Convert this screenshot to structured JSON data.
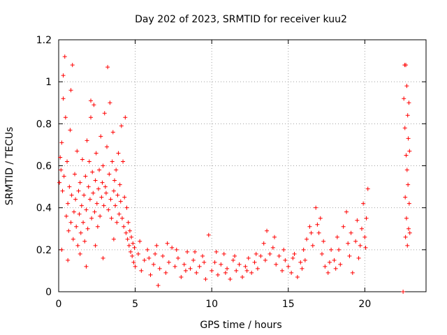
{
  "chart_data": {
    "type": "scatter",
    "title": "Day 202 of 2023, SRMTID for receiver kuu2",
    "xlabel": "GPS time / hours",
    "ylabel": "SRMTID / TECUs",
    "xlim": [
      0,
      24
    ],
    "ylim": [
      0,
      1.2
    ],
    "xticks": [
      0,
      5,
      10,
      15,
      20
    ],
    "yticks": [
      0,
      0.2,
      0.4,
      0.6,
      0.8,
      1,
      1.2
    ],
    "xtick_labels": [
      "0",
      "5",
      "10",
      "15",
      "20"
    ],
    "ytick_labels": [
      "0",
      "0.2",
      "0.4",
      "0.6",
      "0.8",
      "1",
      "1.2"
    ],
    "grid": true,
    "marker": "+",
    "color": "#ff0000",
    "series": [
      {
        "name": "SRMTID",
        "points": [
          [
            0.05,
            0.52
          ],
          [
            0.1,
            0.64
          ],
          [
            0.15,
            0.58
          ],
          [
            0.2,
            0.71
          ],
          [
            0.25,
            0.48
          ],
          [
            0.3,
            0.92
          ],
          [
            0.35,
            0.55
          ],
          [
            0.4,
            1.12
          ],
          [
            0.45,
            0.83
          ],
          [
            0.5,
            0.36
          ],
          [
            0.55,
            0.62
          ],
          [
            0.6,
            0.42
          ],
          [
            0.65,
            0.29
          ],
          [
            0.7,
            0.5
          ],
          [
            0.75,
            0.77
          ],
          [
            0.8,
            0.33
          ],
          [
            0.85,
            0.46
          ],
          [
            0.9,
            1.08
          ],
          [
            0.95,
            0.25
          ],
          [
            1.0,
            0.38
          ],
          [
            1.05,
            0.56
          ],
          [
            1.1,
            0.44
          ],
          [
            1.15,
            0.31
          ],
          [
            1.2,
            0.67
          ],
          [
            1.25,
            0.22
          ],
          [
            1.3,
            0.48
          ],
          [
            1.35,
            0.37
          ],
          [
            1.4,
            0.52
          ],
          [
            1.45,
            0.28
          ],
          [
            1.5,
            0.41
          ],
          [
            1.55,
            0.63
          ],
          [
            1.6,
            0.33
          ],
          [
            1.65,
            0.46
          ],
          [
            1.7,
            0.24
          ],
          [
            1.75,
            0.55
          ],
          [
            1.8,
            0.39
          ],
          [
            1.85,
            0.72
          ],
          [
            1.9,
            0.3
          ],
          [
            1.95,
            0.5
          ],
          [
            2.0,
            0.62
          ],
          [
            2.05,
            0.44
          ],
          [
            2.1,
            0.83
          ],
          [
            2.15,
            0.35
          ],
          [
            2.2,
            0.57
          ],
          [
            2.25,
            0.47
          ],
          [
            2.3,
            0.89
          ],
          [
            2.35,
            0.38
          ],
          [
            2.4,
            0.53
          ],
          [
            2.45,
            0.66
          ],
          [
            2.5,
            0.42
          ],
          [
            2.55,
            0.31
          ],
          [
            2.6,
            0.49
          ],
          [
            2.65,
            0.58
          ],
          [
            2.7,
            0.36
          ],
          [
            2.75,
            0.74
          ],
          [
            2.8,
            0.45
          ],
          [
            2.85,
            0.52
          ],
          [
            2.9,
            0.6
          ],
          [
            2.95,
            0.41
          ],
          [
            3.0,
            0.85
          ],
          [
            3.05,
            0.5
          ],
          [
            3.1,
            0.47
          ],
          [
            3.15,
            0.69
          ],
          [
            3.2,
            1.07
          ],
          [
            3.25,
            0.39
          ],
          [
            3.3,
            0.56
          ],
          [
            3.35,
            0.9
          ],
          [
            3.4,
            0.44
          ],
          [
            3.45,
            0.35
          ],
          [
            3.5,
            0.62
          ],
          [
            3.55,
            0.76
          ],
          [
            3.6,
            0.48
          ],
          [
            3.65,
            0.53
          ],
          [
            3.7,
            0.41
          ],
          [
            3.75,
            0.58
          ],
          [
            3.8,
            0.33
          ],
          [
            3.85,
            0.46
          ],
          [
            3.9,
            0.66
          ],
          [
            3.95,
            0.37
          ],
          [
            4.0,
            0.51
          ],
          [
            4.05,
            0.43
          ],
          [
            4.1,
            0.79
          ],
          [
            4.15,
            0.35
          ],
          [
            4.2,
            0.62
          ],
          [
            4.25,
            0.31
          ],
          [
            4.3,
            0.45
          ],
          [
            4.35,
            0.83
          ],
          [
            4.4,
            0.28
          ],
          [
            4.45,
            0.4
          ],
          [
            4.5,
            0.25
          ],
          [
            4.55,
            0.33
          ],
          [
            4.6,
            0.22
          ],
          [
            4.65,
            0.29
          ],
          [
            4.7,
            0.19
          ],
          [
            4.75,
            0.26
          ],
          [
            4.8,
            0.17
          ],
          [
            4.85,
            0.23
          ],
          [
            4.9,
            0.14
          ],
          [
            4.95,
            0.21
          ],
          [
            5.0,
            0.12
          ],
          [
            0.2,
            0.2
          ],
          [
            0.6,
            0.15
          ],
          [
            1.4,
            0.18
          ],
          [
            1.8,
            0.12
          ],
          [
            2.4,
            0.22
          ],
          [
            2.9,
            0.16
          ],
          [
            3.6,
            0.25
          ],
          [
            0.3,
            1.03
          ],
          [
            0.8,
            0.96
          ],
          [
            2.1,
            0.91
          ],
          [
            5.2,
            0.18
          ],
          [
            5.4,
            0.1
          ],
          [
            5.6,
            0.15
          ],
          [
            5.8,
            0.2
          ],
          [
            6.0,
            0.08
          ],
          [
            6.2,
            0.13
          ],
          [
            6.4,
            0.22
          ],
          [
            6.5,
            0.03
          ],
          [
            6.6,
            0.11
          ],
          [
            6.8,
            0.17
          ],
          [
            7.0,
            0.09
          ],
          [
            7.2,
            0.14
          ],
          [
            7.4,
            0.21
          ],
          [
            7.6,
            0.12
          ],
          [
            7.8,
            0.16
          ],
          [
            8.0,
            0.07
          ],
          [
            8.2,
            0.13
          ],
          [
            8.4,
            0.19
          ],
          [
            8.6,
            0.11
          ],
          [
            8.8,
            0.15
          ],
          [
            9.0,
            0.09
          ],
          [
            9.2,
            0.12
          ],
          [
            9.4,
            0.17
          ],
          [
            9.6,
            0.06
          ],
          [
            9.8,
            0.27
          ],
          [
            10.0,
            0.1
          ],
          [
            10.2,
            0.14
          ],
          [
            10.4,
            0.08
          ],
          [
            10.6,
            0.13
          ],
          [
            10.8,
            0.18
          ],
          [
            11.0,
            0.11
          ],
          [
            11.2,
            0.06
          ],
          [
            11.4,
            0.15
          ],
          [
            11.6,
            0.1
          ],
          [
            11.8,
            0.13
          ],
          [
            12.0,
            0.07
          ],
          [
            12.2,
            0.12
          ],
          [
            12.4,
            0.16
          ],
          [
            12.6,
            0.09
          ],
          [
            12.8,
            0.14
          ],
          [
            13.0,
            0.11
          ],
          [
            13.2,
            0.17
          ],
          [
            13.4,
            0.23
          ],
          [
            13.6,
            0.29
          ],
          [
            13.8,
            0.18
          ],
          [
            14.0,
            0.21
          ],
          [
            14.2,
            0.13
          ],
          [
            14.4,
            0.17
          ],
          [
            14.6,
            0.1
          ],
          [
            14.8,
            0.15
          ],
          [
            15.0,
            0.12
          ],
          [
            15.2,
            0.09
          ],
          [
            15.4,
            0.18
          ],
          [
            15.6,
            0.07
          ],
          [
            15.8,
            0.14
          ],
          [
            16.0,
            0.2
          ],
          [
            16.2,
            0.25
          ],
          [
            16.4,
            0.31
          ],
          [
            16.6,
            0.22
          ],
          [
            16.8,
            0.4
          ],
          [
            17.0,
            0.28
          ],
          [
            17.2,
            0.18
          ],
          [
            17.4,
            0.12
          ],
          [
            17.6,
            0.09
          ],
          [
            17.8,
            0.2
          ],
          [
            18.0,
            0.15
          ],
          [
            18.2,
            0.26
          ],
          [
            18.4,
            0.13
          ],
          [
            18.6,
            0.31
          ],
          [
            18.8,
            0.38
          ],
          [
            19.0,
            0.17
          ],
          [
            19.2,
            0.09
          ],
          [
            19.4,
            0.24
          ],
          [
            19.6,
            0.16
          ],
          [
            19.8,
            0.3
          ],
          [
            20.0,
            0.26
          ],
          [
            20.1,
            0.35
          ],
          [
            20.2,
            0.49
          ],
          [
            19.9,
            0.42
          ],
          [
            20.05,
            0.21
          ],
          [
            5.3,
            0.24
          ],
          [
            5.9,
            0.16
          ],
          [
            6.3,
            0.18
          ],
          [
            7.1,
            0.23
          ],
          [
            7.7,
            0.2
          ],
          [
            8.3,
            0.1
          ],
          [
            8.9,
            0.19
          ],
          [
            9.5,
            0.14
          ],
          [
            10.3,
            0.19
          ],
          [
            10.9,
            0.09
          ],
          [
            11.5,
            0.17
          ],
          [
            12.3,
            0.1
          ],
          [
            12.9,
            0.18
          ],
          [
            13.5,
            0.15
          ],
          [
            14.1,
            0.26
          ],
          [
            14.7,
            0.2
          ],
          [
            15.3,
            0.16
          ],
          [
            15.9,
            0.11
          ],
          [
            16.5,
            0.28
          ],
          [
            17.1,
            0.35
          ],
          [
            17.7,
            0.14
          ],
          [
            18.3,
            0.2
          ],
          [
            18.9,
            0.23
          ],
          [
            19.5,
            0.34
          ],
          [
            16.9,
            0.32
          ],
          [
            17.3,
            0.24
          ],
          [
            18.1,
            0.11
          ],
          [
            19.1,
            0.28
          ],
          [
            19.7,
            0.22
          ],
          [
            16.1,
            0.15
          ],
          [
            22.5,
            0.0
          ],
          [
            22.55,
            0.92
          ],
          [
            22.6,
            1.08
          ],
          [
            22.62,
            0.78
          ],
          [
            22.64,
            0.45
          ],
          [
            22.66,
            0.26
          ],
          [
            22.68,
            1.08
          ],
          [
            22.7,
            0.65
          ],
          [
            22.72,
            0.35
          ],
          [
            22.74,
            0.98
          ],
          [
            22.76,
            0.58
          ],
          [
            22.78,
            0.22
          ],
          [
            22.8,
            0.84
          ],
          [
            22.82,
            0.51
          ],
          [
            22.84,
            0.73
          ],
          [
            22.86,
            0.3
          ],
          [
            22.88,
            0.9
          ],
          [
            22.9,
            0.42
          ],
          [
            22.92,
            0.67
          ],
          [
            22.94,
            0.28
          ]
        ]
      }
    ]
  }
}
